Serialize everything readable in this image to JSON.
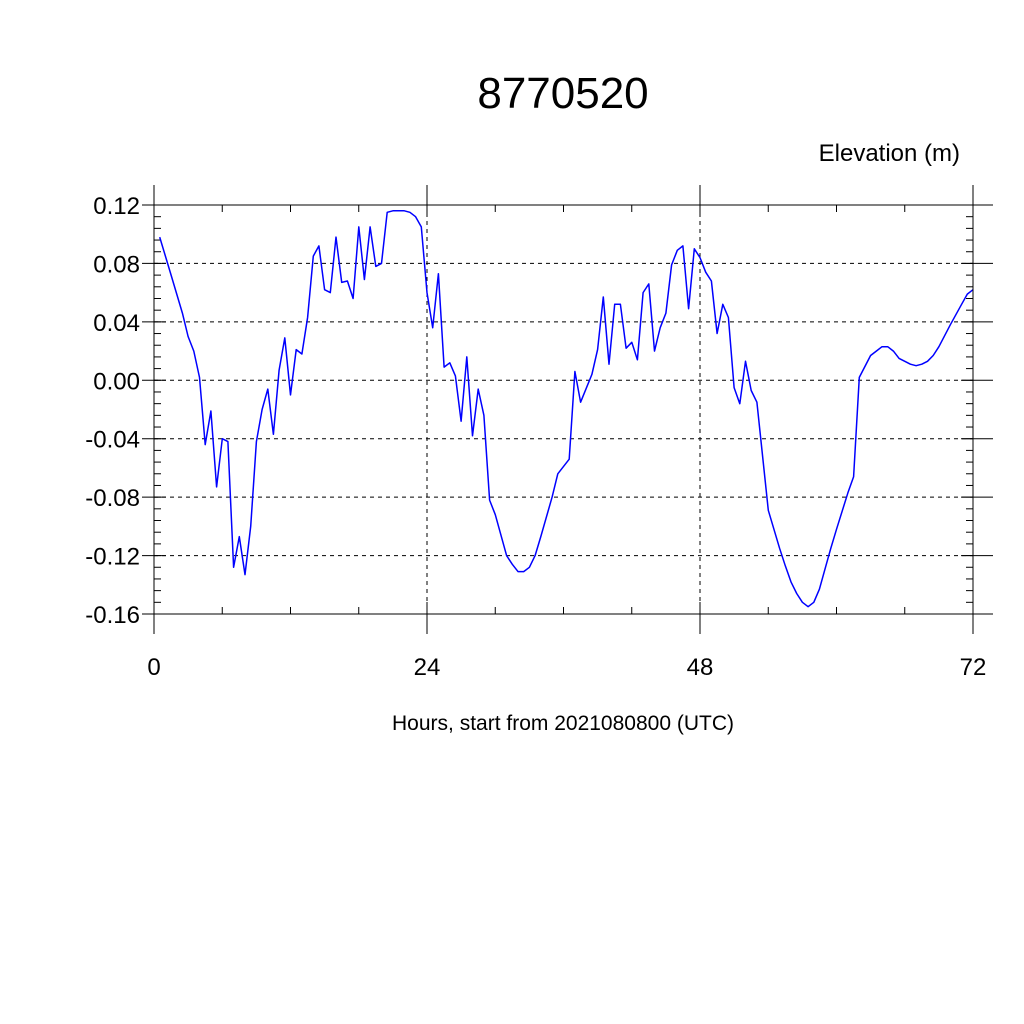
{
  "chart_data": {
    "type": "line",
    "title": "8770520",
    "ylabel": "Elevation (m)",
    "xlabel": "Hours, start from 2021080800 (UTC)",
    "xlim": [
      0,
      72
    ],
    "ylim": [
      -0.16,
      0.12
    ],
    "xticks": [
      0,
      24,
      48,
      72
    ],
    "xtick_labels": [
      "0",
      "24",
      "48",
      "72"
    ],
    "yticks": [
      0.12,
      0.08,
      0.04,
      0.0,
      -0.04,
      -0.08,
      -0.12,
      -0.16
    ],
    "ytick_labels": [
      "0.12",
      "0.08",
      "0.04",
      "0.00",
      "-0.04",
      "-0.08",
      "-0.12",
      "-0.16"
    ],
    "grid": "dashed",
    "series": [
      {
        "color": "#0000ff",
        "x": [
          0.5,
          1.5,
          2.5,
          3.0,
          3.5,
          4.0,
          4.5,
          5.0,
          5.5,
          6.0,
          6.5,
          7.0,
          7.5,
          8.0,
          8.5,
          9.0,
          9.5,
          10.0,
          10.5,
          11.0,
          11.5,
          12.0,
          12.5,
          13.0,
          13.5,
          14.0,
          14.5,
          15.0,
          15.5,
          16.0,
          16.5,
          17.0,
          17.5,
          18.0,
          18.5,
          19.0,
          19.5,
          20.0,
          20.5,
          21.0,
          21.5,
          22.0,
          22.5,
          23.0,
          23.5,
          24.0,
          24.5,
          25.0,
          25.5,
          26.0,
          26.5,
          27.0,
          27.5,
          28.0,
          28.5,
          29.0,
          29.5,
          30.0,
          31.0,
          31.5,
          32.0,
          32.5,
          33.0,
          33.5,
          34.0,
          35.0,
          35.5,
          36.5,
          37.0,
          37.5,
          38.5,
          39.0,
          39.5,
          40.0,
          40.5,
          41.0,
          41.5,
          42.0,
          42.5,
          43.0,
          43.5,
          44.0,
          44.5,
          45.0,
          45.5,
          46.0,
          46.5,
          47.0,
          47.5,
          48.0,
          48.5,
          49.0,
          49.5,
          50.0,
          50.5,
          51.0,
          51.5,
          52.0,
          52.5,
          53.0,
          54.0,
          55.0,
          55.5,
          56.0,
          56.5,
          57.0,
          57.5,
          58.0,
          58.5,
          59.0,
          59.5,
          60.0,
          61.0,
          61.5,
          62.0,
          63.0,
          63.5,
          64.0,
          64.5,
          65.0,
          65.5,
          66.0,
          66.5,
          67.0,
          67.5,
          68.0,
          68.5,
          69.0,
          70.0,
          71.0,
          71.5,
          72.0
        ],
        "y": [
          0.098,
          0.072,
          0.046,
          0.03,
          0.02,
          0.002,
          -0.044,
          -0.021,
          -0.073,
          -0.04,
          -0.042,
          -0.128,
          -0.107,
          -0.133,
          -0.1,
          -0.042,
          -0.02,
          -0.006,
          -0.037,
          0.007,
          0.029,
          -0.01,
          0.021,
          0.018,
          0.043,
          0.085,
          0.092,
          0.062,
          0.06,
          0.098,
          0.067,
          0.068,
          0.056,
          0.105,
          0.069,
          0.105,
          0.078,
          0.08,
          0.115,
          0.116,
          0.116,
          0.116,
          0.115,
          0.112,
          0.105,
          0.06,
          0.036,
          0.073,
          0.009,
          0.012,
          0.003,
          -0.028,
          0.016,
          -0.038,
          -0.006,
          -0.024,
          -0.082,
          -0.092,
          -0.12,
          -0.126,
          -0.131,
          -0.131,
          -0.128,
          -0.12,
          -0.107,
          -0.08,
          -0.064,
          -0.054,
          0.006,
          -0.015,
          0.004,
          0.021,
          0.057,
          0.011,
          0.052,
          0.052,
          0.022,
          0.026,
          0.014,
          0.06,
          0.066,
          0.02,
          0.036,
          0.046,
          0.079,
          0.089,
          0.092,
          0.049,
          0.09,
          0.084,
          0.074,
          0.068,
          0.032,
          0.052,
          0.043,
          -0.005,
          -0.016,
          0.013,
          -0.007,
          -0.015,
          -0.089,
          -0.115,
          -0.127,
          -0.138,
          -0.146,
          -0.152,
          -0.155,
          -0.152,
          -0.143,
          -0.129,
          -0.115,
          -0.102,
          -0.077,
          -0.066,
          0.002,
          0.017,
          0.02,
          0.023,
          0.023,
          0.02,
          0.015,
          0.013,
          0.011,
          0.01,
          0.011,
          0.013,
          0.017,
          0.023,
          0.038,
          0.052,
          0.059,
          0.062
        ]
      }
    ]
  }
}
